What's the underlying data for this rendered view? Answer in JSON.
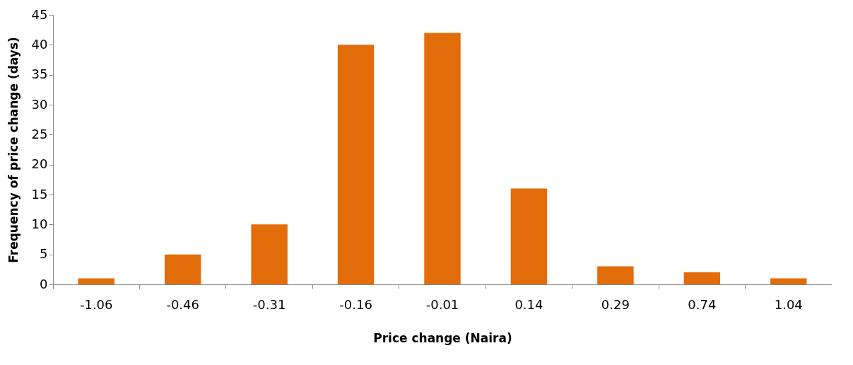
{
  "chart_data": {
    "type": "bar",
    "xlabel": "Price change (Naira)",
    "ylabel": "Frequency of price change  (days)",
    "categories": [
      "-1.06",
      "-0.46",
      "-0.31",
      "-0.16",
      "-0.01",
      "0.14",
      "0.29",
      "0.74",
      "1.04"
    ],
    "values": [
      1,
      5,
      10,
      40,
      42,
      16,
      3,
      2,
      1
    ],
    "color": "#e36c0a",
    "ylim": [
      0,
      45
    ],
    "yticks": [
      0,
      5,
      10,
      15,
      20,
      25,
      30,
      35,
      40,
      45
    ],
    "grid": false
  }
}
